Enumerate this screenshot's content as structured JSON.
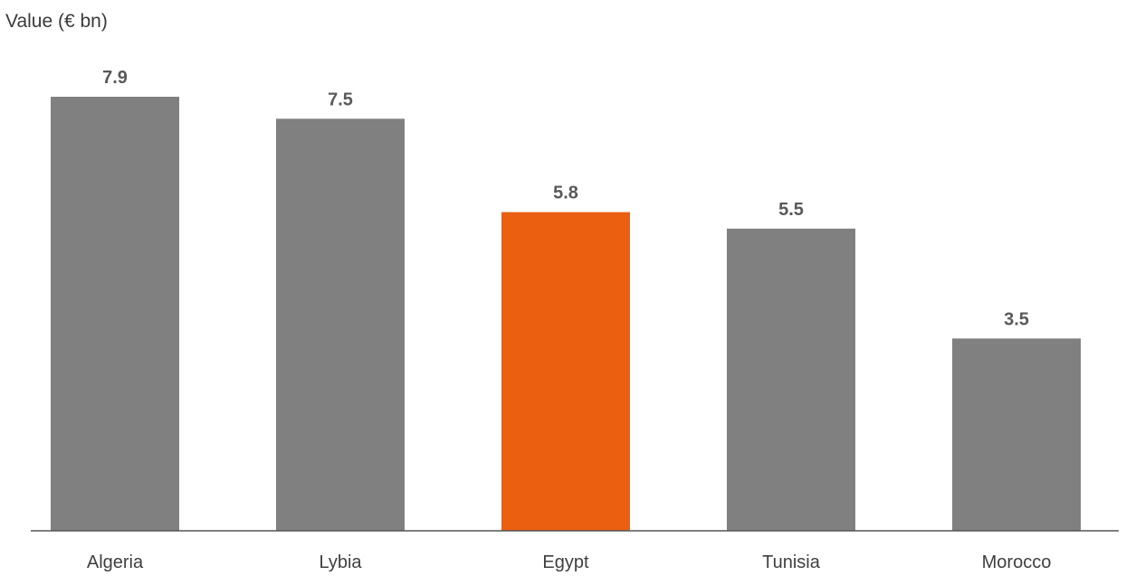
{
  "chart_data": {
    "type": "bar",
    "title": "",
    "xlabel": "",
    "ylabel": "Value (€ bn)",
    "categories": [
      "Algeria",
      "Lybia",
      "Egypt",
      "Tunisia",
      "Morocco"
    ],
    "values": [
      7.9,
      7.5,
      5.8,
      5.5,
      3.5
    ],
    "value_labels": [
      "7.9",
      "7.5",
      "5.8",
      "5.5",
      "3.5"
    ],
    "ylim": [
      0,
      7.9
    ],
    "grid": false,
    "legend": "none",
    "colors": {
      "default_bar": "#7f807f",
      "highlight_bar": "#ea5f10",
      "axis": "#555555"
    },
    "highlight": "Egypt"
  }
}
